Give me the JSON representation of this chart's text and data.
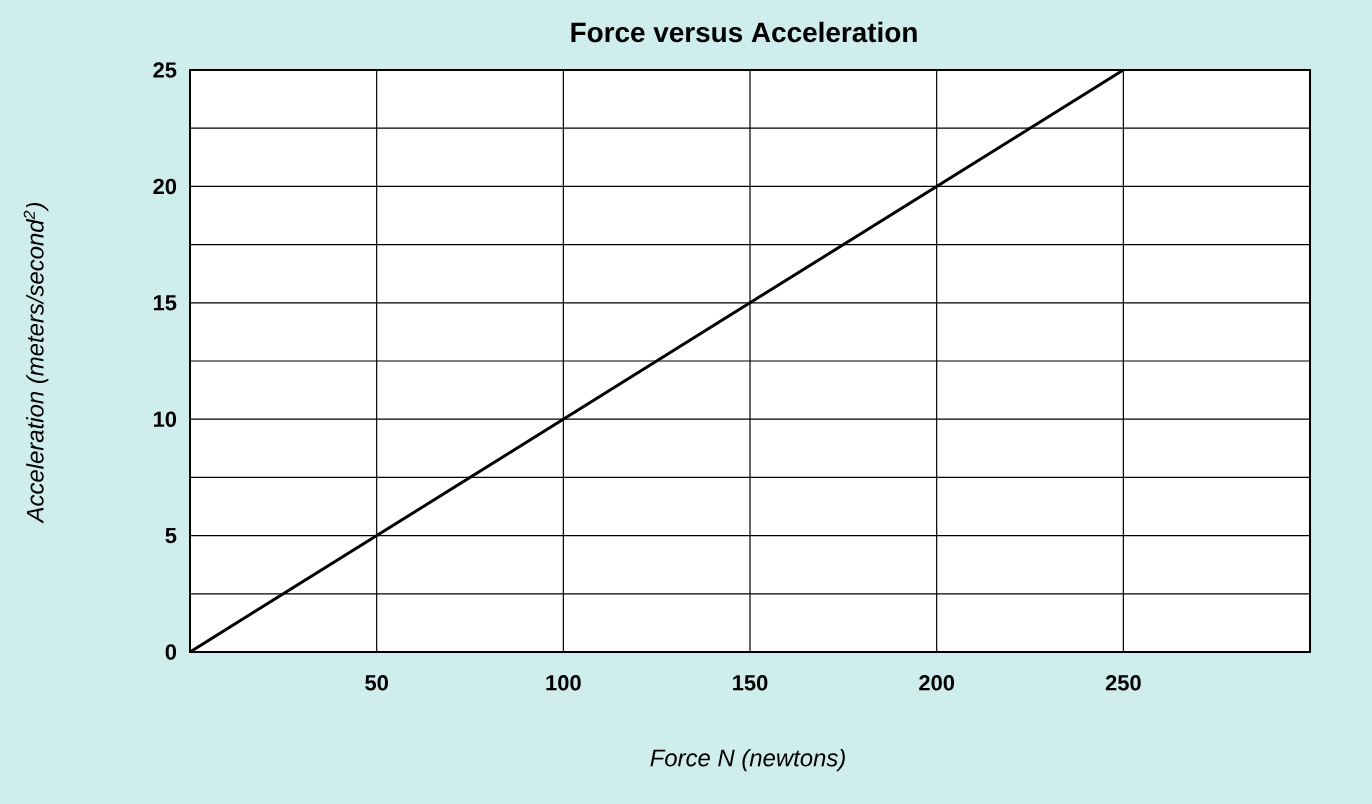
{
  "chart_data": {
    "type": "line",
    "title": "Force versus Acceleration",
    "xlabel": "Force N (newtons)",
    "ylabel": "Acceleration (meters/second$^{2}$)",
    "x": [
      0,
      250
    ],
    "series": [
      {
        "color": "#000000",
        "values": [
          0,
          25
        ]
      }
    ],
    "xlim": [
      0,
      300
    ],
    "ylim": [
      0,
      25
    ],
    "xticks": [
      50,
      100,
      150,
      200,
      250
    ],
    "yticks": [
      0,
      {
        "value": 2.5,
        "label": null
      },
      5,
      {
        "value": 7.5,
        "label": null
      },
      10,
      {
        "value": 12.5,
        "label": null
      },
      15,
      {
        "value": 17.5,
        "label": null
      },
      20,
      {
        "value": 22.5,
        "label": null
      },
      25
    ],
    "grid": true,
    "line_style": "solid"
  }
}
